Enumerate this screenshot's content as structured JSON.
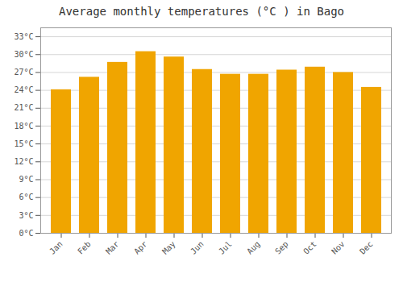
{
  "chart_data": {
    "type": "bar",
    "title": "Average monthly temperatures (°C ) in Bago",
    "categories": [
      "Jan",
      "Feb",
      "Mar",
      "Apr",
      "May",
      "Jun",
      "Jul",
      "Aug",
      "Sep",
      "Oct",
      "Nov",
      "Dec"
    ],
    "values": [
      24.1,
      26.2,
      28.7,
      30.5,
      29.6,
      27.5,
      26.7,
      26.7,
      27.4,
      27.9,
      27.0,
      24.5
    ],
    "color": "#F0A500",
    "ylim": [
      0,
      34.5
    ],
    "yticks": [
      {
        "value": 0,
        "label": "0°C"
      },
      {
        "value": 3,
        "label": "3°C"
      },
      {
        "value": 6,
        "label": "6°C"
      },
      {
        "value": 9,
        "label": "9°C"
      },
      {
        "value": 12,
        "label": "12°C"
      },
      {
        "value": 15,
        "label": "15°C"
      },
      {
        "value": 18,
        "label": "18°C"
      },
      {
        "value": 21,
        "label": "21°C"
      },
      {
        "value": 24,
        "label": "24°C"
      },
      {
        "value": 27,
        "label": "27°C"
      },
      {
        "value": 30,
        "label": "30°C"
      },
      {
        "value": 33,
        "label": "33°C"
      }
    ],
    "grid": true
  }
}
